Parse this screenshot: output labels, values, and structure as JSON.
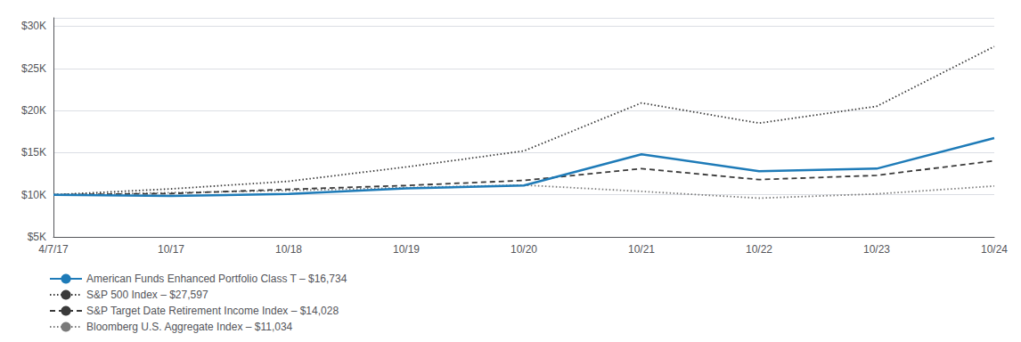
{
  "chart_data": {
    "type": "line",
    "categories": [
      "4/7/17",
      "10/17",
      "10/18",
      "10/19",
      "10/20",
      "10/21",
      "10/22",
      "10/23",
      "10/24"
    ],
    "series": [
      {
        "name": "American Funds Enhanced Portfolio Class T – $16,734",
        "color": "#1e7bb8",
        "line_style": "solid",
        "values": [
          10000,
          9850,
          10100,
          10750,
          11100,
          14800,
          12800,
          13100,
          16734
        ]
      },
      {
        "name": "S&P 500 Index – $27,597",
        "color": "#3a3a3a",
        "line_style": "dotted",
        "values": [
          10000,
          10700,
          11600,
          13300,
          15200,
          20900,
          18500,
          20500,
          27597
        ]
      },
      {
        "name": "S&P Target Date Retirement Income Index – $14,028",
        "color": "#3a3a3a",
        "line_style": "dashed",
        "values": [
          10000,
          10150,
          10650,
          11100,
          11700,
          13100,
          11800,
          12300,
          14028
        ]
      },
      {
        "name": "Bloomberg U.S. Aggregate Index – $11,034",
        "color": "#7a7a7a",
        "line_style": "dotted",
        "values": [
          10000,
          10250,
          10500,
          10850,
          11150,
          10400,
          9600,
          10100,
          11034
        ]
      }
    ],
    "ylim": [
      5000,
      31000
    ],
    "yticks": [
      {
        "value": 5000,
        "label": "$5K"
      },
      {
        "value": 10000,
        "label": "$10K"
      },
      {
        "value": 15000,
        "label": "$15K"
      },
      {
        "value": 20000,
        "label": "$20K"
      },
      {
        "value": 25000,
        "label": "$25K"
      },
      {
        "value": 30000,
        "label": "$30K"
      }
    ],
    "grid": true,
    "legend": "bottom"
  }
}
